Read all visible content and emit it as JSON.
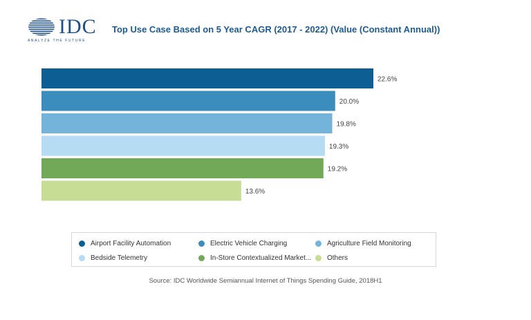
{
  "header": {
    "logo_text": "IDC",
    "logo_tagline": "ANALYZE THE FUTURE",
    "title": "Top Use Case Based on 5 Year CAGR (2017 - 2022) (Value (Constant Annual))"
  },
  "chart_data": {
    "type": "bar",
    "orientation": "horizontal",
    "title": "Top Use Case Based on 5 Year CAGR (2017 - 2022) (Value (Constant Annual))",
    "categories": [
      "Airport Facility Automation",
      "Electric Vehicle Charging",
      "Agriculture Field Monitoring",
      "Bedside Telemetry",
      "In-Store Contextualized Market...",
      "Others"
    ],
    "values": [
      22.6,
      20.0,
      19.8,
      19.3,
      19.2,
      13.6
    ],
    "value_labels": [
      "22.6%",
      "20.0%",
      "19.8%",
      "19.3%",
      "19.2%",
      "13.6%"
    ],
    "colors": [
      "#0d5f93",
      "#3a8dbd",
      "#74b3da",
      "#b5dcf3",
      "#72a958",
      "#c7dc94"
    ],
    "unit": "%",
    "xlim": [
      0,
      22.6
    ],
    "grid": false,
    "legend_position": "bottom"
  },
  "source": "Source: IDC Worldwide Semiannual Internet of Things Spending Guide, 2018H1"
}
